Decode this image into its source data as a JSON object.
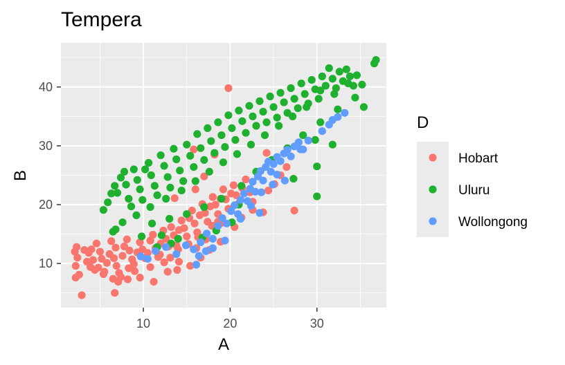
{
  "chart_data": {
    "type": "scatter",
    "title": "Tempera",
    "xlabel": "A",
    "ylabel": "B",
    "xlim": [
      0.5,
      38
    ],
    "ylim": [
      2.5,
      47.5
    ],
    "x_ticks": [
      10,
      20,
      30
    ],
    "y_ticks": [
      10,
      20,
      30,
      40
    ],
    "x_tick_labels": [
      "10",
      "20",
      "30"
    ],
    "y_tick_labels": [
      "10",
      "20",
      "30",
      "40"
    ],
    "grid": true,
    "legend_title": "D",
    "legend_position": "right",
    "series": [
      {
        "name": "Hobart",
        "color": "#F8766D",
        "points": [
          [
            2.3,
            12.8
          ],
          [
            2.1,
            12.0
          ],
          [
            2.4,
            11.0
          ],
          [
            2.2,
            9.6
          ],
          [
            2.6,
            8.1
          ],
          [
            2.2,
            7.6
          ],
          [
            2.9,
            4.6
          ],
          [
            3.2,
            12.3
          ],
          [
            3.7,
            11.8
          ],
          [
            3.5,
            10.3
          ],
          [
            3.9,
            9.4
          ],
          [
            4.2,
            10.6
          ],
          [
            4.0,
            12.4
          ],
          [
            4.6,
            13.4
          ],
          [
            5.0,
            12.0
          ],
          [
            5.2,
            10.8
          ],
          [
            4.8,
            9.3
          ],
          [
            5.5,
            8.6
          ],
          [
            5.8,
            10.1
          ],
          [
            6.1,
            11.6
          ],
          [
            6.3,
            13.8
          ],
          [
            6.8,
            12.7
          ],
          [
            6.6,
            10.9
          ],
          [
            6.9,
            9.6
          ],
          [
            7.2,
            8.4
          ],
          [
            7.6,
            11.3
          ],
          [
            7.8,
            12.9
          ],
          [
            8.1,
            14.1
          ],
          [
            8.4,
            12.2
          ],
          [
            8.7,
            10.7
          ],
          [
            8.3,
            9.2
          ],
          [
            9.0,
            8.7
          ],
          [
            9.3,
            11.9
          ],
          [
            9.6,
            13.6
          ],
          [
            9.9,
            12.4
          ],
          [
            10.2,
            10.9
          ],
          [
            10.5,
            11.8
          ],
          [
            10.8,
            13.9
          ],
          [
            11.1,
            14.9
          ],
          [
            11.4,
            12.6
          ],
          [
            11.7,
            11.1
          ],
          [
            12.0,
            13.4
          ],
          [
            12.3,
            15.6
          ],
          [
            12.6,
            14.2
          ],
          [
            12.9,
            12.9
          ],
          [
            13.2,
            16.2
          ],
          [
            13.5,
            14.8
          ],
          [
            13.8,
            13.1
          ],
          [
            14.1,
            15.7
          ],
          [
            14.4,
            17.3
          ],
          [
            14.7,
            16.0
          ],
          [
            15.0,
            14.6
          ],
          [
            15.3,
            17.7
          ],
          [
            15.6,
            19.0
          ],
          [
            15.9,
            16.8
          ],
          [
            16.2,
            15.3
          ],
          [
            16.5,
            18.2
          ],
          [
            16.8,
            20.1
          ],
          [
            17.1,
            18.6
          ],
          [
            17.4,
            17.1
          ],
          [
            17.7,
            19.7
          ],
          [
            18.0,
            21.3
          ],
          [
            18.3,
            20.0
          ],
          [
            18.6,
            18.4
          ],
          [
            18.9,
            21.0
          ],
          [
            19.2,
            22.6
          ],
          [
            19.5,
            20.9
          ],
          [
            19.8,
            19.3
          ],
          [
            20.1,
            21.9
          ],
          [
            20.4,
            23.3
          ],
          [
            20.7,
            21.6
          ],
          [
            21.0,
            20.2
          ],
          [
            21.4,
            22.8
          ],
          [
            21.8,
            24.3
          ],
          [
            22.3,
            22.1
          ],
          [
            11.9,
            11.5
          ],
          [
            12.4,
            10.2
          ],
          [
            13.1,
            11.0
          ],
          [
            14.0,
            12.4
          ],
          [
            15.2,
            13.3
          ],
          [
            16.3,
            14.5
          ],
          [
            17.2,
            14.1
          ],
          [
            18.1,
            16.4
          ],
          [
            19.0,
            16.9
          ],
          [
            6.5,
            7.4
          ],
          [
            5.4,
            8.2
          ],
          [
            4.4,
            8.9
          ],
          [
            7.4,
            7.7
          ],
          [
            8.9,
            9.9
          ],
          [
            10.8,
            9.4
          ],
          [
            12.8,
            8.6
          ],
          [
            11.2,
            6.9
          ],
          [
            6.7,
            5.0
          ],
          [
            19.8,
            39.8
          ],
          [
            18.2,
            28.5
          ],
          [
            15.8,
            29.4
          ],
          [
            17.0,
            24.8
          ],
          [
            16.0,
            22.6
          ],
          [
            13.6,
            21.1
          ],
          [
            27.4,
            19.0
          ],
          [
            23.8,
            18.7
          ],
          [
            22.6,
            20.5
          ],
          [
            25.8,
            25.0
          ],
          [
            26.5,
            26.4
          ],
          [
            24.2,
            28.8
          ],
          [
            16.1,
            12.6
          ],
          [
            16.6,
            11.0
          ],
          [
            15.4,
            9.6
          ],
          [
            14.1,
            10.3
          ],
          [
            13.9,
            8.9
          ],
          [
            17.6,
            12.3
          ],
          [
            18.9,
            13.7
          ],
          [
            20.5,
            16.2
          ],
          [
            21.3,
            17.8
          ],
          [
            22.6,
            19.1
          ],
          [
            9.6,
            7.6
          ],
          [
            8.2,
            7.3
          ],
          [
            7.1,
            6.9
          ],
          [
            24.4,
            22.4
          ],
          [
            25.1,
            23.5
          ],
          [
            17.9,
            16.4
          ],
          [
            18.6,
            17.1
          ]
        ]
      },
      {
        "name": "Uluru",
        "color": "#1FB02F",
        "points": [
          [
            5.4,
            19.1
          ],
          [
            5.9,
            20.4
          ],
          [
            6.3,
            21.9
          ],
          [
            6.7,
            23.2
          ],
          [
            7.0,
            22.0
          ],
          [
            7.4,
            24.6
          ],
          [
            7.8,
            25.6
          ],
          [
            8.0,
            23.4
          ],
          [
            8.3,
            21.0
          ],
          [
            8.6,
            19.7
          ],
          [
            8.9,
            26.0
          ],
          [
            9.3,
            24.2
          ],
          [
            9.6,
            22.6
          ],
          [
            9.9,
            20.8
          ],
          [
            10.2,
            26.0
          ],
          [
            10.6,
            27.1
          ],
          [
            10.9,
            25.0
          ],
          [
            11.3,
            23.2
          ],
          [
            11.6,
            21.6
          ],
          [
            12.0,
            28.4
          ],
          [
            12.4,
            26.6
          ],
          [
            12.8,
            24.7
          ],
          [
            13.1,
            22.9
          ],
          [
            13.5,
            29.5
          ],
          [
            13.8,
            27.7
          ],
          [
            14.2,
            25.8
          ],
          [
            14.6,
            24.0
          ],
          [
            15.0,
            30.2
          ],
          [
            15.4,
            28.3
          ],
          [
            15.8,
            26.4
          ],
          [
            16.2,
            32.0
          ],
          [
            16.6,
            29.6
          ],
          [
            17.0,
            27.6
          ],
          [
            17.4,
            33.0
          ],
          [
            17.8,
            30.8
          ],
          [
            18.2,
            28.8
          ],
          [
            18.6,
            34.0
          ],
          [
            19.0,
            31.8
          ],
          [
            19.4,
            29.8
          ],
          [
            19.8,
            35.2
          ],
          [
            20.2,
            33.0
          ],
          [
            20.6,
            31.0
          ],
          [
            21.0,
            36.0
          ],
          [
            21.4,
            34.2
          ],
          [
            21.8,
            32.2
          ],
          [
            22.2,
            36.8
          ],
          [
            22.6,
            35.0
          ],
          [
            23.0,
            33.4
          ],
          [
            23.4,
            37.6
          ],
          [
            23.8,
            35.8
          ],
          [
            24.2,
            34.0
          ],
          [
            24.6,
            38.4
          ],
          [
            25.0,
            36.6
          ],
          [
            25.4,
            34.8
          ],
          [
            25.8,
            39.0
          ],
          [
            26.2,
            37.4
          ],
          [
            26.6,
            35.6
          ],
          [
            27.0,
            39.8
          ],
          [
            27.4,
            38.0
          ],
          [
            27.8,
            36.4
          ],
          [
            28.2,
            40.6
          ],
          [
            28.6,
            38.8
          ],
          [
            29.0,
            37.2
          ],
          [
            29.4,
            41.2
          ],
          [
            29.8,
            39.6
          ],
          [
            30.2,
            38.0
          ],
          [
            30.6,
            41.8
          ],
          [
            31.0,
            40.2
          ],
          [
            31.4,
            43.2
          ],
          [
            31.8,
            41.4
          ],
          [
            32.2,
            39.8
          ],
          [
            32.6,
            42.6
          ],
          [
            33.0,
            41.0
          ],
          [
            33.4,
            43.0
          ],
          [
            33.8,
            41.8
          ],
          [
            34.2,
            40.2
          ],
          [
            34.6,
            42.0
          ],
          [
            35.4,
            36.6
          ],
          [
            36.6,
            44.0
          ],
          [
            36.8,
            44.6
          ],
          [
            30.0,
            21.4
          ],
          [
            30.0,
            26.5
          ],
          [
            31.8,
            30.2
          ],
          [
            29.8,
            31.0
          ],
          [
            27.3,
            24.4
          ],
          [
            21.0,
            20.0
          ],
          [
            20.2,
            17.0
          ],
          [
            18.4,
            15.6
          ],
          [
            16.8,
            14.4
          ],
          [
            14.0,
            14.2
          ],
          [
            12.1,
            14.8
          ],
          [
            9.8,
            14.6
          ],
          [
            6.8,
            15.8
          ],
          [
            6.5,
            15.4
          ],
          [
            11.0,
            16.8
          ],
          [
            13.0,
            17.6
          ],
          [
            15.0,
            18.4
          ],
          [
            17.0,
            19.6
          ],
          [
            19.0,
            21.0
          ],
          [
            21.3,
            23.2
          ],
          [
            23.0,
            25.6
          ],
          [
            24.8,
            27.6
          ],
          [
            26.6,
            29.6
          ],
          [
            28.4,
            31.8
          ],
          [
            30.4,
            34.0
          ],
          [
            32.4,
            36.2
          ],
          [
            34.4,
            38.2
          ],
          [
            35.2,
            40.4
          ],
          [
            7.6,
            17.0
          ],
          [
            9.2,
            18.2
          ],
          [
            10.8,
            19.6
          ],
          [
            12.6,
            21.0
          ],
          [
            14.4,
            22.4
          ],
          [
            16.0,
            24.0
          ],
          [
            17.6,
            25.6
          ],
          [
            19.2,
            27.2
          ],
          [
            20.8,
            28.6
          ],
          [
            22.4,
            30.2
          ],
          [
            24.0,
            31.8
          ],
          [
            25.6,
            33.4
          ],
          [
            27.2,
            35.0
          ],
          [
            28.8,
            36.6
          ],
          [
            30.4,
            39.4
          ],
          [
            32.0,
            38.8
          ],
          [
            33.6,
            40.6
          ],
          [
            11.6,
            12.8
          ],
          [
            13.2,
            13.4
          ]
        ]
      },
      {
        "name": "Wollongong",
        "color": "#619CFF",
        "points": [
          [
            9.7,
            11.2
          ],
          [
            10.5,
            10.8
          ],
          [
            11.4,
            12.1
          ],
          [
            12.6,
            12.8
          ],
          [
            13.8,
            11.6
          ],
          [
            14.9,
            13.1
          ],
          [
            15.8,
            12.4
          ],
          [
            16.6,
            13.6
          ],
          [
            17.3,
            15.1
          ],
          [
            18.0,
            14.2
          ],
          [
            18.6,
            16.4
          ],
          [
            19.1,
            17.7
          ],
          [
            19.6,
            16.8
          ],
          [
            20.1,
            18.9
          ],
          [
            20.5,
            19.9
          ],
          [
            20.9,
            18.4
          ],
          [
            21.2,
            20.8
          ],
          [
            21.6,
            21.9
          ],
          [
            22.0,
            20.6
          ],
          [
            22.3,
            22.7
          ],
          [
            22.6,
            23.9
          ],
          [
            22.9,
            22.2
          ],
          [
            23.2,
            24.8
          ],
          [
            23.5,
            25.7
          ],
          [
            23.8,
            24.1
          ],
          [
            24.1,
            26.4
          ],
          [
            24.4,
            27.3
          ],
          [
            24.7,
            25.6
          ],
          [
            25.0,
            26.9
          ],
          [
            25.4,
            28.1
          ],
          [
            25.8,
            27.4
          ],
          [
            26.2,
            28.7
          ],
          [
            26.6,
            29.3
          ],
          [
            27.0,
            28.2
          ],
          [
            27.4,
            29.9
          ],
          [
            27.9,
            30.6
          ],
          [
            28.4,
            29.4
          ],
          [
            29.0,
            30.9
          ],
          [
            30.6,
            32.5
          ],
          [
            31.4,
            33.6
          ],
          [
            31.8,
            34.4
          ],
          [
            32.4,
            34.9
          ],
          [
            33.2,
            35.6
          ],
          [
            19.4,
            13.9
          ],
          [
            18.0,
            12.6
          ],
          [
            17.2,
            12.1
          ],
          [
            16.4,
            11.3
          ],
          [
            16.1,
            9.8
          ],
          [
            21.2,
            17.6
          ],
          [
            22.4,
            19.8
          ],
          [
            23.6,
            22.1
          ],
          [
            24.9,
            23.4
          ],
          [
            26.3,
            24.1
          ],
          [
            25.4,
            25.1
          ],
          [
            23.4,
            18.6
          ],
          [
            28.1,
            29.4
          ]
        ]
      }
    ]
  }
}
